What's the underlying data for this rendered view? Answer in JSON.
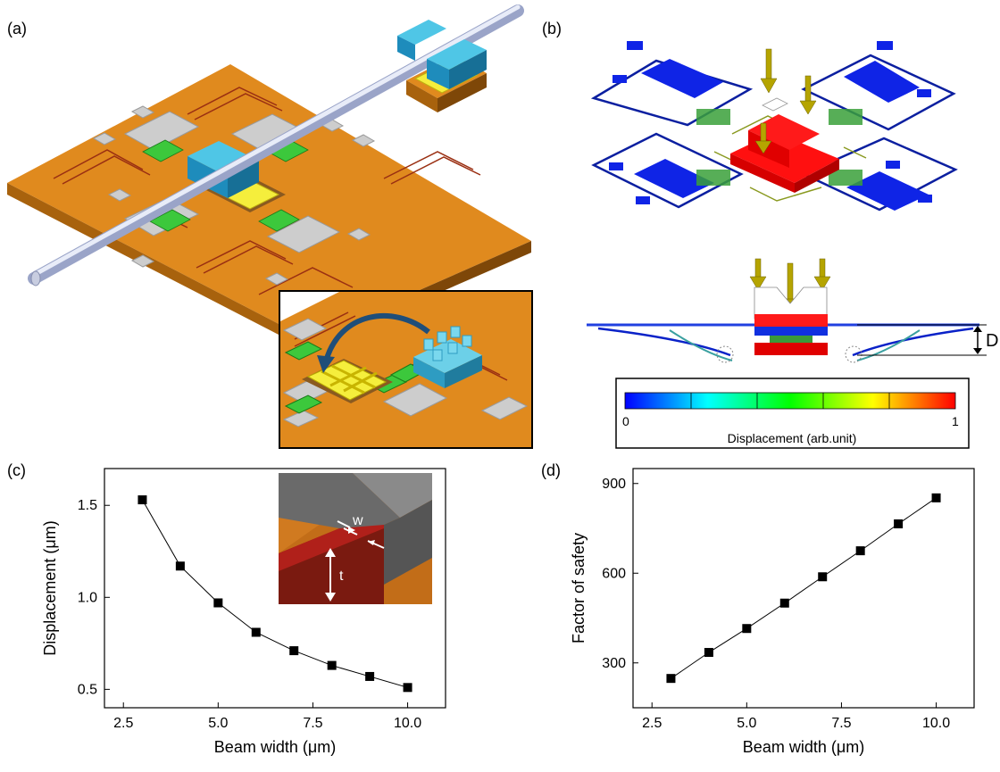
{
  "panels": {
    "a": "(a)",
    "b": "(b)",
    "c": "(c)",
    "d": "(d)"
  },
  "panel_b": {
    "dimension_label": "D",
    "colorbar": {
      "min_label": "0",
      "max_label": "1",
      "title": "Displacement (arb.unit)",
      "colors": [
        "#0000ff",
        "#00ffff",
        "#00ff00",
        "#ffff00",
        "#ff0000"
      ]
    }
  },
  "inset_c": {
    "width_label": "w",
    "thickness_label": "t"
  },
  "chart_data": [
    {
      "type": "line",
      "x": [
        3,
        4,
        5,
        6,
        7,
        8,
        9,
        10
      ],
      "y": [
        1.53,
        1.17,
        0.97,
        0.81,
        0.71,
        0.63,
        0.57,
        0.51
      ],
      "xlabel": "Beam width (μm)",
      "ylabel": "Displacement (μm)",
      "xlim": [
        2,
        11
      ],
      "ylim": [
        0.4,
        1.7
      ],
      "xticks": [
        2.5,
        5.0,
        7.5,
        10.0
      ],
      "xtick_labels": [
        "2.5",
        "5.0",
        "7.5",
        "10.0"
      ],
      "yticks": [
        0.5,
        1.0,
        1.5
      ],
      "ytick_labels": [
        "0.5",
        "1.0",
        "1.5"
      ],
      "marker": "square",
      "grid": false
    },
    {
      "type": "line",
      "x": [
        3,
        4,
        5,
        6,
        7,
        8,
        9,
        10
      ],
      "y": [
        248,
        335,
        415,
        500,
        588,
        675,
        765,
        852
      ],
      "xlabel": "Beam width (μm)",
      "ylabel": "Factor of safety",
      "xlim": [
        2,
        11
      ],
      "ylim": [
        150,
        950
      ],
      "xticks": [
        2.5,
        5.0,
        7.5,
        10.0
      ],
      "xtick_labels": [
        "2.5",
        "5.0",
        "7.5",
        "10.0"
      ],
      "yticks": [
        300,
        600,
        900
      ],
      "ytick_labels": [
        "300",
        "600",
        "900"
      ],
      "marker": "square",
      "grid": false
    }
  ]
}
